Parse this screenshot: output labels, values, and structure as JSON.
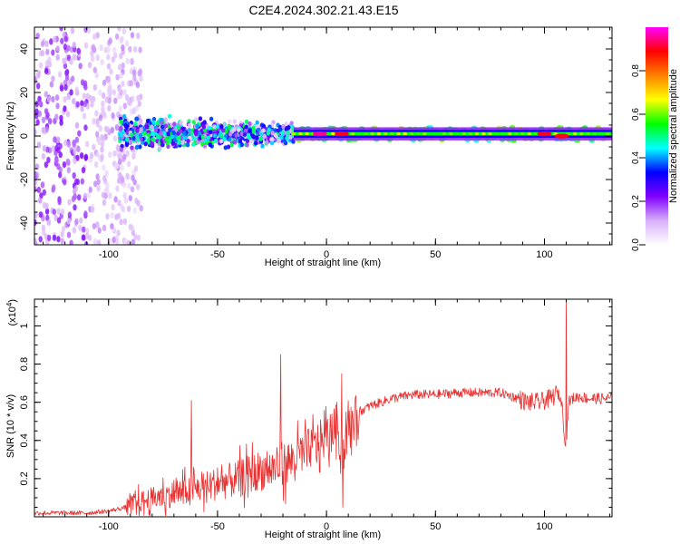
{
  "figure_title": "C2E4.2024.302.21.43.E15",
  "chart_data": [
    {
      "type": "heatmap",
      "title": "C2E4.2024.302.21.43.E15",
      "xlabel": "Height of straight line (km)",
      "ylabel": "Frequency (Hz)",
      "xlim": [
        -134,
        131
      ],
      "ylim": [
        -50,
        50
      ],
      "xticks": [
        -100,
        -50,
        0,
        50,
        100
      ],
      "xtick_labels": [
        "-100",
        "-50",
        "0",
        "50",
        "100"
      ],
      "yticks": [
        -40,
        -20,
        0,
        20,
        40
      ],
      "ytick_labels": [
        "-40",
        "-20",
        "0",
        "20",
        "40"
      ],
      "colorbar": {
        "label": "Normalized spectral amplitude",
        "range": [
          0,
          1
        ],
        "ticks": [
          0.0,
          0.2,
          0.4,
          0.6,
          0.8
        ],
        "tick_labels": [
          "0.0",
          "0.2",
          "0.4",
          "0.6",
          "0.8"
        ],
        "colormap": [
          "#ffffff",
          "#d8b0f8",
          "#8000ff",
          "#0000ff",
          "#00ffff",
          "#00ff00",
          "#ffff00",
          "#ff8000",
          "#ff0000",
          "#ff00ff"
        ]
      },
      "regions": [
        {
          "x_range": [
            -134,
            -85
          ],
          "f_range": [
            -50,
            50
          ],
          "amplitude": 0.12,
          "description": "diffuse noise"
        },
        {
          "x_range": [
            -95,
            -15
          ],
          "f_range": [
            -12,
            12
          ],
          "amplitude": 0.3
        },
        {
          "x_range": [
            -15,
            131
          ],
          "f_range": [
            -2,
            4
          ],
          "amplitude": 0.55
        }
      ],
      "hot_spots": [
        {
          "x": -3,
          "f": 1,
          "amplitude": 0.95
        },
        {
          "x": 7,
          "f": 1,
          "amplitude": 0.9
        },
        {
          "x": 100,
          "f": 1,
          "amplitude": 0.9
        },
        {
          "x": 108,
          "f": 0,
          "amplitude": 0.9
        }
      ]
    },
    {
      "type": "line",
      "xlabel": "Height of straight line (km)",
      "ylabel": "SNR (10 * v/v)",
      "y_multiplier": "(x10⁴)",
      "y_multiplier_base": "(x10",
      "y_multiplier_exp": "4",
      "y_multiplier_close": ")",
      "xlim": [
        -134,
        131
      ],
      "ylim": [
        0,
        1.14
      ],
      "xticks": [
        -100,
        -50,
        0,
        50,
        100
      ],
      "xtick_labels": [
        "-100",
        "-50",
        "0",
        "50",
        "100"
      ],
      "yticks": [
        0.2,
        0.4,
        0.6,
        0.8,
        1.0
      ],
      "ytick_labels": [
        "0.2",
        "0.4",
        "0.6",
        "0.8",
        "1"
      ],
      "color": "#e83030",
      "series": [
        {
          "x": [
            -134,
            -110,
            -100,
            -92,
            -85,
            -78,
            -70,
            -62,
            -55,
            -48,
            -40,
            -32,
            -25,
            -20,
            -15,
            -10,
            -5,
            0,
            3,
            5,
            7,
            9,
            12,
            15,
            20,
            25,
            30,
            40,
            50,
            60,
            70,
            80,
            88,
            92,
            95,
            98,
            100,
            103,
            106,
            108,
            109,
            110,
            111,
            113,
            116,
            120,
            125,
            131
          ],
          "y": [
            0.02,
            0.02,
            0.03,
            0.05,
            0.08,
            0.1,
            0.12,
            0.14,
            0.16,
            0.18,
            0.2,
            0.24,
            0.25,
            0.27,
            0.3,
            0.34,
            0.38,
            0.42,
            0.45,
            0.5,
            0.3,
            0.42,
            0.5,
            0.55,
            0.58,
            0.6,
            0.62,
            0.64,
            0.64,
            0.65,
            0.65,
            0.65,
            0.62,
            0.6,
            0.6,
            0.6,
            0.61,
            0.62,
            0.65,
            0.6,
            0.45,
            0.36,
            0.6,
            0.62,
            0.63,
            0.62,
            0.62,
            0.62
          ]
        }
      ],
      "spikes": [
        {
          "x": -62,
          "y": 0.61
        },
        {
          "x": -21,
          "y": 0.85
        },
        {
          "x": 7,
          "y": 0.75
        },
        {
          "x": 7.5,
          "y": 0.05
        },
        {
          "x": 110,
          "y": 1.14
        }
      ]
    }
  ]
}
